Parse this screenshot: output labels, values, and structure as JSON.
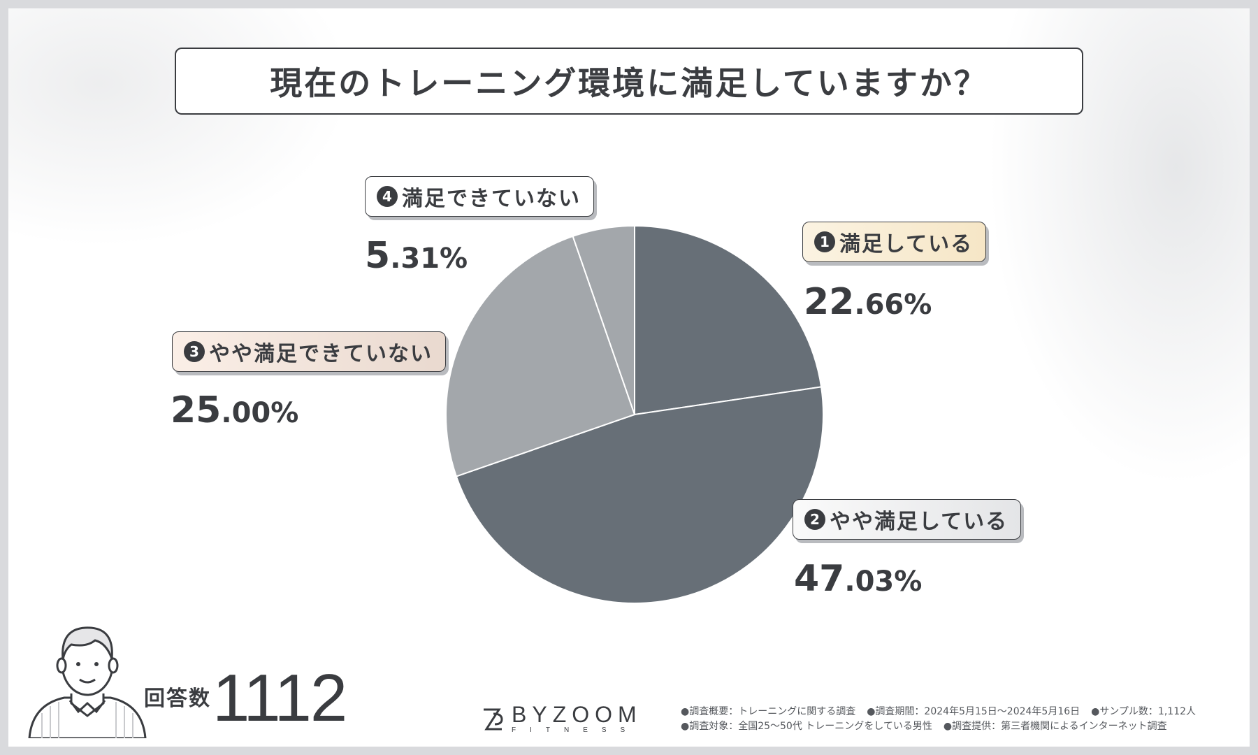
{
  "title": "現在のトレーニング環境に満足していますか？",
  "chart_data": {
    "type": "pie",
    "title": "現在のトレーニング環境に満足していますか？",
    "slices": [
      {
        "num": "1",
        "label": "満足している",
        "value": 22.66,
        "pct_int": "22",
        "pct_dec": ".66%",
        "color": "#676f77"
      },
      {
        "num": "2",
        "label": "やや満足している",
        "value": 47.03,
        "pct_int": "47",
        "pct_dec": ".03%",
        "color": "#676f77"
      },
      {
        "num": "3",
        "label": "やや満足できていない",
        "value": 25.0,
        "pct_int": "25",
        "pct_dec": ".00%",
        "color": "#a3a7ab"
      },
      {
        "num": "4",
        "label": "満足できていない",
        "value": 5.31,
        "pct_int": "5",
        "pct_dec": ".31%",
        "color": "#a3a7ab"
      }
    ]
  },
  "respondents": {
    "label": "回答数",
    "count": "1112"
  },
  "logo": {
    "name": "BYZOOM",
    "sub": "FITNESS"
  },
  "notes": {
    "line1": [
      "●調査概要：トレーニングに関する調査",
      "●調査期間：2024年5月15日～2024年5月16日",
      "●サンプル数：1,112人"
    ],
    "line2": [
      "●調査対象：全国25～50代 トレーニングをしている男性",
      "●調査提供：第三者機関によるインターネット調査"
    ]
  }
}
